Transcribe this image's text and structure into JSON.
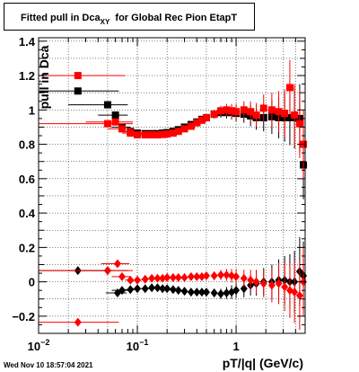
{
  "title": {
    "text": "Fitted pull in Dca",
    "subscript": "XY",
    "suffix": "for Global Rec Pion EtapT"
  },
  "date_stamp": "Wed Nov 10 18:57:04 2021",
  "colors": {
    "series_black": "#000000",
    "series_red": "#ff0000"
  },
  "chart_data": {
    "type": "scatter",
    "title": "Fitted pull in Dca_XY for Global Rec Pion EtapT",
    "xlabel": "pT/|q| (GeV/c)",
    "ylabel": "pull in Dca",
    "x_scale": "log",
    "xlim": [
      0.01,
      5.0
    ],
    "ylim": [
      -0.3,
      1.42
    ],
    "grid": true,
    "x_tick_labels": [
      {
        "value": 0.01,
        "mant": "10",
        "exp": "−2"
      },
      {
        "value": 0.1,
        "mant": "10",
        "exp": "−1"
      },
      {
        "value": 1,
        "mant": "1",
        "exp": ""
      }
    ],
    "y_tick_labels": [
      "−0.2",
      "0",
      "0.2",
      "0.4",
      "0.6",
      "0.8",
      "1",
      "1.2",
      "1.4"
    ],
    "y_tick_values": [
      -0.2,
      0,
      0.2,
      0.4,
      0.6,
      0.8,
      1.0,
      1.2,
      1.4
    ],
    "series": [
      {
        "color": "#000000",
        "marker": "square",
        "group": "width",
        "points": [
          [
            0.025,
            1.11,
            0.015,
            0.04
          ],
          [
            0.05,
            1.03,
            0.004,
            0.03
          ],
          [
            0.06,
            0.97,
            0.004,
            0.02
          ],
          [
            0.07,
            0.9,
            0.003,
            0.015
          ],
          [
            0.085,
            0.875,
            0.004,
            0.01
          ],
          [
            0.1,
            0.865,
            0.005,
            0.01
          ],
          [
            0.12,
            0.862,
            0.005,
            0.01
          ],
          [
            0.14,
            0.862,
            0.005,
            0.01
          ],
          [
            0.16,
            0.862,
            0.006,
            0.01
          ],
          [
            0.18,
            0.865,
            0.007,
            0.01
          ],
          [
            0.2,
            0.868,
            0.008,
            0.01
          ],
          [
            0.23,
            0.875,
            0.009,
            0.01
          ],
          [
            0.26,
            0.885,
            0.01,
            0.01
          ],
          [
            0.3,
            0.9,
            0.012,
            0.01
          ],
          [
            0.35,
            0.915,
            0.014,
            0.01
          ],
          [
            0.4,
            0.93,
            0.016,
            0.01
          ],
          [
            0.45,
            0.945,
            0.018,
            0.01
          ],
          [
            0.5,
            0.955,
            0.02,
            0.01
          ],
          [
            0.6,
            0.975,
            0.025,
            0.01
          ],
          [
            0.7,
            0.985,
            0.03,
            0.01
          ],
          [
            0.8,
            0.985,
            0.035,
            0.01
          ],
          [
            0.9,
            0.985,
            0.04,
            0.01
          ],
          [
            1.0,
            0.98,
            0.045,
            0.01
          ],
          [
            1.2,
            0.975,
            0.05,
            0.015
          ],
          [
            1.4,
            0.965,
            0.06,
            0.015
          ],
          [
            1.6,
            0.955,
            0.07,
            0.02
          ],
          [
            1.9,
            0.955,
            0.08,
            0.02
          ],
          [
            2.3,
            0.96,
            0.1,
            0.025
          ],
          [
            2.7,
            0.955,
            0.12,
            0.03
          ],
          [
            3.1,
            0.955,
            0.14,
            0.03
          ],
          [
            3.5,
            0.955,
            0.16,
            0.03
          ],
          [
            3.9,
            0.955,
            0.18,
            0.04
          ],
          [
            4.4,
            0.95,
            0.2,
            0.05
          ],
          [
            4.8,
            0.68,
            0.2,
            0.1
          ]
        ]
      },
      {
        "color": "#ff0000",
        "marker": "square",
        "group": "width",
        "points": [
          [
            0.025,
            1.2,
            0.015,
            0.05
          ],
          [
            0.05,
            0.92,
            0.004,
            0.04
          ],
          [
            0.06,
            0.93,
            0.004,
            0.03
          ],
          [
            0.07,
            0.89,
            0.003,
            0.02
          ],
          [
            0.085,
            0.865,
            0.004,
            0.015
          ],
          [
            0.1,
            0.855,
            0.005,
            0.01
          ],
          [
            0.12,
            0.855,
            0.005,
            0.01
          ],
          [
            0.14,
            0.855,
            0.005,
            0.01
          ],
          [
            0.16,
            0.855,
            0.006,
            0.01
          ],
          [
            0.18,
            0.857,
            0.007,
            0.01
          ],
          [
            0.2,
            0.86,
            0.008,
            0.01
          ],
          [
            0.23,
            0.865,
            0.009,
            0.01
          ],
          [
            0.26,
            0.875,
            0.01,
            0.01
          ],
          [
            0.3,
            0.89,
            0.012,
            0.01
          ],
          [
            0.35,
            0.905,
            0.014,
            0.01
          ],
          [
            0.4,
            0.925,
            0.016,
            0.01
          ],
          [
            0.45,
            0.94,
            0.018,
            0.01
          ],
          [
            0.5,
            0.955,
            0.02,
            0.01
          ],
          [
            0.6,
            0.975,
            0.025,
            0.01
          ],
          [
            0.7,
            0.995,
            0.03,
            0.01
          ],
          [
            0.8,
            1.0,
            0.035,
            0.015
          ],
          [
            0.9,
            0.995,
            0.04,
            0.015
          ],
          [
            1.0,
            0.99,
            0.045,
            0.015
          ],
          [
            1.2,
            1.0,
            0.05,
            0.02
          ],
          [
            1.4,
            0.99,
            0.06,
            0.02
          ],
          [
            1.6,
            0.97,
            0.07,
            0.025
          ],
          [
            1.9,
            1.01,
            0.08,
            0.03
          ],
          [
            2.3,
            1.0,
            0.1,
            0.035
          ],
          [
            2.7,
            0.99,
            0.12,
            0.04
          ],
          [
            3.1,
            0.98,
            0.14,
            0.05
          ],
          [
            3.5,
            1.13,
            0.16,
            0.06
          ],
          [
            3.9,
            0.97,
            0.18,
            0.08
          ],
          [
            4.4,
            0.92,
            0.2,
            0.1
          ],
          [
            4.8,
            0.8,
            0.2,
            0.15
          ]
        ]
      },
      {
        "color": "#000000",
        "marker": "diamond",
        "group": "mean",
        "points": [
          [
            0.025,
            0.065,
            0.015,
            0.03
          ],
          [
            0.05,
            0.065,
            0.004,
            0.03
          ],
          [
            0.063,
            -0.065,
            0.004,
            0.015
          ],
          [
            0.07,
            -0.05,
            0.003,
            0.015
          ],
          [
            0.085,
            -0.045,
            0.004,
            0.01
          ],
          [
            0.1,
            -0.04,
            0.005,
            0.01
          ],
          [
            0.12,
            -0.04,
            0.005,
            0.01
          ],
          [
            0.14,
            -0.035,
            0.005,
            0.01
          ],
          [
            0.16,
            -0.035,
            0.006,
            0.01
          ],
          [
            0.18,
            -0.04,
            0.007,
            0.01
          ],
          [
            0.2,
            -0.04,
            0.008,
            0.01
          ],
          [
            0.23,
            -0.045,
            0.009,
            0.01
          ],
          [
            0.26,
            -0.05,
            0.01,
            0.01
          ],
          [
            0.3,
            -0.055,
            0.012,
            0.01
          ],
          [
            0.35,
            -0.06,
            0.014,
            0.01
          ],
          [
            0.4,
            -0.06,
            0.016,
            0.01
          ],
          [
            0.45,
            -0.06,
            0.018,
            0.01
          ],
          [
            0.5,
            -0.06,
            0.02,
            0.01
          ],
          [
            0.6,
            -0.065,
            0.025,
            0.01
          ],
          [
            0.7,
            -0.07,
            0.03,
            0.01
          ],
          [
            0.8,
            -0.065,
            0.035,
            0.01
          ],
          [
            0.9,
            -0.06,
            0.04,
            0.01
          ],
          [
            1.0,
            -0.05,
            0.045,
            0.01
          ],
          [
            1.2,
            -0.04,
            0.05,
            0.015
          ],
          [
            1.4,
            -0.02,
            0.06,
            0.015
          ],
          [
            1.6,
            -0.01,
            0.07,
            0.02
          ],
          [
            1.9,
            0.0,
            0.08,
            0.02
          ],
          [
            2.3,
            0.0,
            0.1,
            0.025
          ],
          [
            2.7,
            0.01,
            0.12,
            0.03
          ],
          [
            3.1,
            0.01,
            0.14,
            0.03
          ],
          [
            3.5,
            0.0,
            0.16,
            0.04
          ],
          [
            3.9,
            0.0,
            0.18,
            0.05
          ],
          [
            4.4,
            0.06,
            0.2,
            0.06
          ],
          [
            4.8,
            0.035,
            0.2,
            0.08
          ]
        ]
      },
      {
        "color": "#ff0000",
        "marker": "diamond",
        "group": "mean",
        "points": [
          [
            0.025,
            -0.235,
            0.015,
            0.04
          ],
          [
            0.05,
            0.065,
            0.004,
            0.04
          ],
          [
            0.063,
            0.105,
            0.004,
            0.02
          ],
          [
            0.07,
            0.03,
            0.003,
            0.015
          ],
          [
            0.085,
            0.01,
            0.004,
            0.01
          ],
          [
            0.1,
            0.01,
            0.005,
            0.01
          ],
          [
            0.12,
            0.015,
            0.005,
            0.01
          ],
          [
            0.14,
            0.02,
            0.005,
            0.01
          ],
          [
            0.16,
            0.02,
            0.006,
            0.01
          ],
          [
            0.18,
            0.02,
            0.007,
            0.01
          ],
          [
            0.2,
            0.025,
            0.008,
            0.01
          ],
          [
            0.23,
            0.025,
            0.009,
            0.01
          ],
          [
            0.26,
            0.025,
            0.01,
            0.01
          ],
          [
            0.3,
            0.025,
            0.012,
            0.01
          ],
          [
            0.35,
            0.03,
            0.014,
            0.01
          ],
          [
            0.4,
            0.03,
            0.016,
            0.01
          ],
          [
            0.45,
            0.03,
            0.018,
            0.01
          ],
          [
            0.5,
            0.035,
            0.02,
            0.01
          ],
          [
            0.6,
            0.035,
            0.025,
            0.01
          ],
          [
            0.7,
            0.04,
            0.03,
            0.01
          ],
          [
            0.8,
            0.04,
            0.035,
            0.015
          ],
          [
            0.9,
            0.035,
            0.04,
            0.015
          ],
          [
            1.0,
            0.03,
            0.045,
            0.015
          ],
          [
            1.2,
            0.02,
            0.05,
            0.02
          ],
          [
            1.4,
            0.01,
            0.06,
            0.025
          ],
          [
            1.6,
            0.0,
            0.07,
            0.03
          ],
          [
            1.9,
            -0.01,
            0.08,
            0.03
          ],
          [
            2.3,
            -0.02,
            0.1,
            0.035
          ],
          [
            2.7,
            -0.01,
            0.12,
            0.04
          ],
          [
            3.1,
            -0.03,
            0.14,
            0.05
          ],
          [
            3.5,
            -0.05,
            0.16,
            0.06
          ],
          [
            3.9,
            -0.06,
            0.18,
            0.08
          ],
          [
            4.4,
            -0.08,
            0.2,
            0.1
          ],
          [
            4.8,
            0.0,
            0.2,
            0.15
          ]
        ]
      }
    ]
  }
}
